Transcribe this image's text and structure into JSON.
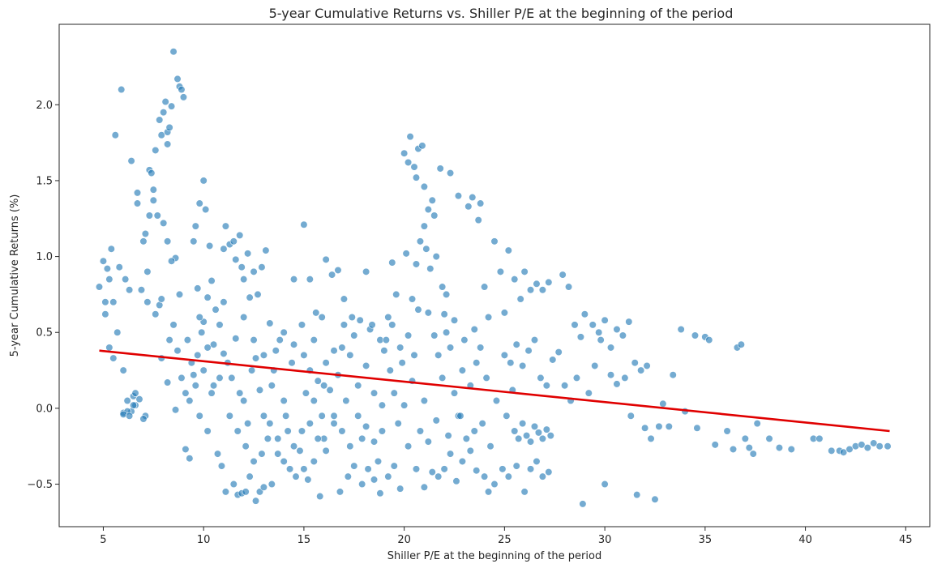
{
  "chart_data": {
    "type": "scatter",
    "title": "5-year Cumulative Returns vs. Shiller P/E at the beginning of the period",
    "xlabel": "Shiller P/E at the beginning of the period",
    "ylabel": "5-year Cumulative Returns (%)",
    "xlim": [
      2.8,
      46.2
    ],
    "ylim": [
      -0.78,
      2.53
    ],
    "x_ticks": [
      5,
      10,
      15,
      20,
      25,
      30,
      35,
      40,
      45
    ],
    "x_tick_labels": [
      "5",
      "10",
      "15",
      "20",
      "25",
      "30",
      "35",
      "40",
      "45"
    ],
    "y_ticks": [
      -0.5,
      0.0,
      0.5,
      1.0,
      1.5,
      2.0
    ],
    "y_tick_labels": [
      "−0.5",
      "0.0",
      "0.5",
      "1.0",
      "1.5",
      "2.0"
    ],
    "grid": false,
    "legend": null,
    "colors": {
      "points": "#1f77b4",
      "points_edge": "#ffffff",
      "trendline": "#e00000",
      "axes": "#262626"
    },
    "trendline": {
      "x": [
        4.8,
        44.2
      ],
      "y": [
        0.38,
        -0.15
      ]
    },
    "points": [
      [
        4.8,
        0.8
      ],
      [
        5.0,
        0.97
      ],
      [
        5.1,
        0.62
      ],
      [
        5.1,
        0.7
      ],
      [
        5.2,
        0.92
      ],
      [
        5.3,
        0.85
      ],
      [
        5.4,
        1.05
      ],
      [
        5.5,
        0.7
      ],
      [
        5.3,
        0.4
      ],
      [
        5.5,
        0.33
      ],
      [
        5.6,
        1.8
      ],
      [
        5.9,
        2.1
      ],
      [
        5.8,
        0.93
      ],
      [
        5.7,
        0.5
      ],
      [
        6.0,
        0.25
      ],
      [
        6.1,
        0.85
      ],
      [
        6.3,
        0.78
      ],
      [
        6.4,
        1.63
      ],
      [
        6.0,
        -0.03
      ],
      [
        6.2,
        0.05
      ],
      [
        6.4,
        -0.02
      ],
      [
        6.5,
        0.08
      ],
      [
        6.6,
        0.02
      ],
      [
        6.7,
        1.42
      ],
      [
        6.7,
        1.35
      ],
      [
        6.9,
        0.78
      ],
      [
        7.0,
        1.1
      ],
      [
        7.1,
        1.15
      ],
      [
        7.2,
        0.9
      ],
      [
        7.3,
        1.57
      ],
      [
        7.4,
        1.55
      ],
      [
        7.5,
        1.44
      ],
      [
        7.5,
        1.37
      ],
      [
        7.6,
        1.7
      ],
      [
        7.3,
        1.27
      ],
      [
        7.7,
        1.27
      ],
      [
        7.8,
        0.68
      ],
      [
        7.9,
        0.72
      ],
      [
        7.8,
        1.9
      ],
      [
        7.9,
        1.8
      ],
      [
        8.0,
        1.95
      ],
      [
        8.1,
        2.02
      ],
      [
        8.2,
        1.74
      ],
      [
        8.2,
        1.82
      ],
      [
        8.3,
        1.85
      ],
      [
        8.4,
        1.99
      ],
      [
        8.5,
        2.35
      ],
      [
        8.7,
        2.17
      ],
      [
        8.8,
        2.12
      ],
      [
        8.9,
        2.1
      ],
      [
        9.0,
        2.05
      ],
      [
        8.6,
        0.99
      ],
      [
        8.4,
        0.97
      ],
      [
        8.0,
        1.22
      ],
      [
        8.2,
        1.1
      ],
      [
        7.6,
        0.62
      ],
      [
        7.2,
        0.7
      ],
      [
        7.1,
        -0.05
      ],
      [
        7.0,
        -0.07
      ],
      [
        6.8,
        0.06
      ],
      [
        6.6,
        0.1
      ],
      [
        6.5,
        0.02
      ],
      [
        6.2,
        -0.02
      ],
      [
        6.0,
        -0.04
      ],
      [
        6.3,
        -0.05
      ],
      [
        7.9,
        0.33
      ],
      [
        8.2,
        0.17
      ],
      [
        8.6,
        -0.01
      ],
      [
        9.1,
        -0.27
      ],
      [
        9.3,
        -0.33
      ],
      [
        9.5,
        1.1
      ],
      [
        9.6,
        1.2
      ],
      [
        9.8,
        1.35
      ],
      [
        9.7,
        0.79
      ],
      [
        10.0,
        1.5
      ],
      [
        10.1,
        1.31
      ],
      [
        10.3,
        1.07
      ],
      [
        10.4,
        0.84
      ],
      [
        10.2,
        0.73
      ],
      [
        10.0,
        0.57
      ],
      [
        9.8,
        -0.05
      ],
      [
        10.2,
        -0.15
      ],
      [
        10.5,
        0.15
      ],
      [
        10.7,
        -0.3
      ],
      [
        10.9,
        -0.38
      ],
      [
        11.0,
        1.05
      ],
      [
        11.1,
        1.2
      ],
      [
        11.3,
        1.08
      ],
      [
        11.5,
        1.1
      ],
      [
        11.6,
        0.98
      ],
      [
        11.8,
        1.14
      ],
      [
        11.9,
        0.93
      ],
      [
        12.0,
        0.85
      ],
      [
        12.2,
        1.02
      ],
      [
        12.3,
        0.73
      ],
      [
        12.5,
        0.9
      ],
      [
        12.7,
        0.75
      ],
      [
        12.9,
        0.93
      ],
      [
        13.1,
        1.04
      ],
      [
        13.3,
        0.56
      ],
      [
        11.1,
        -0.55
      ],
      [
        11.5,
        -0.5
      ],
      [
        11.7,
        -0.57
      ],
      [
        11.9,
        -0.56
      ],
      [
        12.1,
        -0.55
      ],
      [
        12.3,
        -0.45
      ],
      [
        12.6,
        -0.61
      ],
      [
        12.8,
        -0.55
      ],
      [
        13.0,
        -0.52
      ],
      [
        13.4,
        -0.5
      ],
      [
        10.5,
        0.42
      ],
      [
        10.8,
        0.55
      ],
      [
        11.0,
        0.36
      ],
      [
        11.2,
        0.3
      ],
      [
        11.4,
        0.2
      ],
      [
        11.6,
        0.46
      ],
      [
        11.8,
        0.1
      ],
      [
        12.0,
        0.05
      ],
      [
        12.2,
        -0.1
      ],
      [
        12.4,
        0.25
      ],
      [
        12.6,
        0.33
      ],
      [
        12.8,
        0.12
      ],
      [
        13.0,
        -0.05
      ],
      [
        13.2,
        -0.2
      ],
      [
        13.4,
        0.15
      ],
      [
        13.6,
        0.38
      ],
      [
        13.8,
        0.45
      ],
      [
        14.0,
        0.05
      ],
      [
        14.2,
        -0.15
      ],
      [
        14.4,
        0.3
      ],
      [
        13.7,
        -0.3
      ],
      [
        14.0,
        -0.35
      ],
      [
        14.3,
        -0.4
      ],
      [
        14.6,
        -0.45
      ],
      [
        14.8,
        -0.28
      ],
      [
        15.0,
        -0.4
      ],
      [
        15.2,
        -0.47
      ],
      [
        15.5,
        -0.35
      ],
      [
        15.8,
        -0.58
      ],
      [
        16.0,
        -0.2
      ],
      [
        14.5,
        0.85
      ],
      [
        14.9,
        0.55
      ],
      [
        15.0,
        1.21
      ],
      [
        15.3,
        0.85
      ],
      [
        15.6,
        0.63
      ],
      [
        15.9,
        0.6
      ],
      [
        16.1,
        0.98
      ],
      [
        16.4,
        0.88
      ],
      [
        16.7,
        0.91
      ],
      [
        17.0,
        0.55
      ],
      [
        15.1,
        0.1
      ],
      [
        15.3,
        0.25
      ],
      [
        15.5,
        0.05
      ],
      [
        15.7,
        0.18
      ],
      [
        15.9,
        -0.05
      ],
      [
        16.1,
        0.3
      ],
      [
        16.3,
        0.12
      ],
      [
        16.5,
        -0.1
      ],
      [
        16.7,
        0.22
      ],
      [
        16.9,
        0.4
      ],
      [
        17.1,
        0.05
      ],
      [
        17.3,
        0.35
      ],
      [
        17.5,
        0.48
      ],
      [
        17.7,
        0.15
      ],
      [
        17.9,
        -0.2
      ],
      [
        18.1,
        0.28
      ],
      [
        18.3,
        0.52
      ],
      [
        18.5,
        0.1
      ],
      [
        18.7,
        -0.35
      ],
      [
        18.9,
        -0.15
      ],
      [
        16.8,
        -0.55
      ],
      [
        17.2,
        -0.45
      ],
      [
        17.5,
        -0.38
      ],
      [
        17.9,
        -0.5
      ],
      [
        18.2,
        -0.4
      ],
      [
        18.5,
        -0.47
      ],
      [
        18.8,
        -0.56
      ],
      [
        19.2,
        -0.45
      ],
      [
        19.5,
        -0.38
      ],
      [
        19.8,
        -0.53
      ],
      [
        17.0,
        0.72
      ],
      [
        17.4,
        0.6
      ],
      [
        17.8,
        0.58
      ],
      [
        18.1,
        0.9
      ],
      [
        18.4,
        0.55
      ],
      [
        18.8,
        0.45
      ],
      [
        19.0,
        0.38
      ],
      [
        19.2,
        0.6
      ],
      [
        19.4,
        0.96
      ],
      [
        19.6,
        0.75
      ],
      [
        19.3,
        0.25
      ],
      [
        19.5,
        0.1
      ],
      [
        19.7,
        -0.1
      ],
      [
        19.9,
        0.3
      ],
      [
        20.0,
        0.02
      ],
      [
        20.2,
        -0.25
      ],
      [
        20.4,
        0.18
      ],
      [
        20.6,
        -0.4
      ],
      [
        20.8,
        -0.15
      ],
      [
        21.0,
        0.05
      ],
      [
        20.0,
        1.68
      ],
      [
        20.2,
        1.62
      ],
      [
        20.3,
        1.79
      ],
      [
        20.5,
        1.59
      ],
      [
        20.6,
        1.52
      ],
      [
        20.7,
        1.71
      ],
      [
        20.9,
        1.73
      ],
      [
        21.0,
        1.46
      ],
      [
        21.2,
        1.31
      ],
      [
        21.4,
        1.37
      ],
      [
        21.5,
        1.27
      ],
      [
        21.8,
        1.58
      ],
      [
        22.3,
        1.55
      ],
      [
        22.7,
        1.4
      ],
      [
        23.2,
        1.33
      ],
      [
        23.4,
        1.39
      ],
      [
        23.7,
        1.24
      ],
      [
        23.8,
        1.35
      ],
      [
        20.1,
        1.02
      ],
      [
        20.6,
        0.95
      ],
      [
        20.8,
        1.1
      ],
      [
        21.0,
        1.2
      ],
      [
        21.1,
        1.05
      ],
      [
        21.3,
        0.92
      ],
      [
        21.6,
        1.0
      ],
      [
        21.9,
        0.8
      ],
      [
        22.1,
        0.75
      ],
      [
        20.4,
        0.72
      ],
      [
        20.7,
        0.65
      ],
      [
        21.2,
        0.63
      ],
      [
        21.5,
        0.48
      ],
      [
        21.7,
        0.35
      ],
      [
        21.9,
        0.2
      ],
      [
        22.1,
        0.5
      ],
      [
        22.3,
        0.4
      ],
      [
        22.5,
        0.1
      ],
      [
        22.7,
        -0.05
      ],
      [
        22.9,
        0.25
      ],
      [
        23.1,
        -0.2
      ],
      [
        23.3,
        0.15
      ],
      [
        21.0,
        -0.52
      ],
      [
        21.4,
        -0.42
      ],
      [
        21.7,
        -0.45
      ],
      [
        22.0,
        -0.4
      ],
      [
        22.3,
        -0.3
      ],
      [
        22.6,
        -0.48
      ],
      [
        22.9,
        -0.35
      ],
      [
        23.3,
        -0.28
      ],
      [
        23.6,
        -0.41
      ],
      [
        24.0,
        -0.45
      ],
      [
        23.5,
        0.52
      ],
      [
        23.8,
        0.4
      ],
      [
        24.0,
        0.8
      ],
      [
        24.2,
        0.6
      ],
      [
        24.5,
        1.1
      ],
      [
        24.8,
        0.9
      ],
      [
        25.0,
        0.63
      ],
      [
        25.2,
        1.04
      ],
      [
        25.5,
        0.85
      ],
      [
        25.8,
        0.72
      ],
      [
        24.2,
        -0.55
      ],
      [
        24.5,
        -0.5
      ],
      [
        24.9,
        -0.4
      ],
      [
        25.2,
        -0.45
      ],
      [
        25.6,
        -0.38
      ],
      [
        26.0,
        -0.55
      ],
      [
        26.3,
        -0.4
      ],
      [
        26.6,
        -0.35
      ],
      [
        26.9,
        -0.45
      ],
      [
        27.2,
        -0.42
      ],
      [
        25.5,
        -0.15
      ],
      [
        25.7,
        -0.2
      ],
      [
        25.9,
        -0.1
      ],
      [
        26.1,
        -0.18
      ],
      [
        26.3,
        -0.22
      ],
      [
        26.5,
        -0.12
      ],
      [
        26.7,
        -0.16
      ],
      [
        26.9,
        -0.2
      ],
      [
        27.1,
        -0.14
      ],
      [
        27.3,
        -0.18
      ],
      [
        25.0,
        0.35
      ],
      [
        25.3,
        0.3
      ],
      [
        25.6,
        0.42
      ],
      [
        25.9,
        0.28
      ],
      [
        26.2,
        0.38
      ],
      [
        26.5,
        0.45
      ],
      [
        26.8,
        0.2
      ],
      [
        27.1,
        0.15
      ],
      [
        27.4,
        0.32
      ],
      [
        27.7,
        0.37
      ],
      [
        26.0,
        0.9
      ],
      [
        26.3,
        0.78
      ],
      [
        26.6,
        0.82
      ],
      [
        26.9,
        0.78
      ],
      [
        27.2,
        0.83
      ],
      [
        27.9,
        0.88
      ],
      [
        28.2,
        0.8
      ],
      [
        28.5,
        0.55
      ],
      [
        28.8,
        0.47
      ],
      [
        29.0,
        0.62
      ],
      [
        28.0,
        0.15
      ],
      [
        28.3,
        0.05
      ],
      [
        28.6,
        0.2
      ],
      [
        28.9,
        -0.63
      ],
      [
        29.2,
        0.1
      ],
      [
        29.5,
        0.28
      ],
      [
        29.8,
        0.45
      ],
      [
        30.0,
        -0.5
      ],
      [
        30.3,
        0.22
      ],
      [
        30.6,
        0.16
      ],
      [
        29.4,
        0.55
      ],
      [
        29.7,
        0.5
      ],
      [
        30.0,
        0.58
      ],
      [
        30.3,
        0.4
      ],
      [
        30.6,
        0.52
      ],
      [
        30.9,
        0.48
      ],
      [
        31.2,
        0.57
      ],
      [
        31.5,
        0.3
      ],
      [
        31.8,
        0.25
      ],
      [
        32.1,
        0.28
      ],
      [
        31.0,
        0.2
      ],
      [
        31.3,
        -0.05
      ],
      [
        31.6,
        -0.57
      ],
      [
        32.0,
        -0.13
      ],
      [
        32.3,
        -0.2
      ],
      [
        32.5,
        -0.6
      ],
      [
        32.7,
        -0.12
      ],
      [
        32.9,
        0.03
      ],
      [
        33.2,
        -0.12
      ],
      [
        33.4,
        0.22
      ],
      [
        33.8,
        0.52
      ],
      [
        34.5,
        0.48
      ],
      [
        35.0,
        0.47
      ],
      [
        35.2,
        0.45
      ],
      [
        34.0,
        -0.02
      ],
      [
        34.6,
        -0.13
      ],
      [
        35.5,
        -0.24
      ],
      [
        36.1,
        -0.15
      ],
      [
        36.4,
        -0.27
      ],
      [
        36.6,
        0.4
      ],
      [
        36.8,
        0.42
      ],
      [
        37.0,
        -0.2
      ],
      [
        37.2,
        -0.26
      ],
      [
        37.4,
        -0.3
      ],
      [
        37.6,
        -0.1
      ],
      [
        38.2,
        -0.2
      ],
      [
        38.7,
        -0.26
      ],
      [
        39.3,
        -0.27
      ],
      [
        40.4,
        -0.2
      ],
      [
        40.7,
        -0.2
      ],
      [
        41.3,
        -0.28
      ],
      [
        41.7,
        -0.28
      ],
      [
        41.9,
        -0.29
      ],
      [
        42.2,
        -0.27
      ],
      [
        42.5,
        -0.25
      ],
      [
        42.8,
        -0.24
      ],
      [
        43.1,
        -0.26
      ],
      [
        43.4,
        -0.23
      ],
      [
        43.7,
        -0.25
      ],
      [
        44.1,
        -0.25
      ],
      [
        9.2,
        0.45
      ],
      [
        9.4,
        0.3
      ],
      [
        9.6,
        0.15
      ],
      [
        9.8,
        0.6
      ],
      [
        10.0,
        0.25
      ],
      [
        10.2,
        0.4
      ],
      [
        10.4,
        0.1
      ],
      [
        10.6,
        0.65
      ],
      [
        10.8,
        0.2
      ],
      [
        11.0,
        0.7
      ],
      [
        9.1,
        0.1
      ],
      [
        9.3,
        0.05
      ],
      [
        9.5,
        0.22
      ],
      [
        9.7,
        0.35
      ],
      [
        9.9,
        0.5
      ],
      [
        8.9,
        0.2
      ],
      [
        8.7,
        0.38
      ],
      [
        8.5,
        0.55
      ],
      [
        8.3,
        0.45
      ],
      [
        8.8,
        0.75
      ],
      [
        12.0,
        0.6
      ],
      [
        12.5,
        0.45
      ],
      [
        13.0,
        0.35
      ],
      [
        13.5,
        0.25
      ],
      [
        14.0,
        0.5
      ],
      [
        14.5,
        0.42
      ],
      [
        15.0,
        0.35
      ],
      [
        15.5,
        0.45
      ],
      [
        16.0,
        0.15
      ],
      [
        16.5,
        0.38
      ],
      [
        11.3,
        -0.05
      ],
      [
        11.7,
        -0.15
      ],
      [
        12.1,
        -0.25
      ],
      [
        12.5,
        -0.35
      ],
      [
        12.9,
        -0.3
      ],
      [
        13.3,
        -0.1
      ],
      [
        13.7,
        -0.2
      ],
      [
        14.1,
        -0.05
      ],
      [
        14.5,
        -0.25
      ],
      [
        14.9,
        -0.15
      ],
      [
        15.3,
        -0.1
      ],
      [
        15.7,
        -0.2
      ],
      [
        16.1,
        -0.28
      ],
      [
        16.5,
        -0.05
      ],
      [
        16.9,
        -0.15
      ],
      [
        17.3,
        -0.25
      ],
      [
        17.7,
        -0.05
      ],
      [
        18.1,
        -0.12
      ],
      [
        18.5,
        -0.22
      ],
      [
        18.9,
        0.02
      ],
      [
        19.1,
        0.45
      ],
      [
        19.4,
        0.55
      ],
      [
        19.8,
        0.4
      ],
      [
        20.2,
        0.48
      ],
      [
        20.5,
        0.35
      ],
      [
        22.0,
        0.62
      ],
      [
        22.5,
        0.58
      ],
      [
        23.0,
        0.45
      ],
      [
        23.6,
        0.3
      ],
      [
        24.1,
        0.2
      ],
      [
        24.6,
        0.05
      ],
      [
        25.1,
        -0.05
      ],
      [
        25.4,
        0.12
      ],
      [
        23.9,
        -0.1
      ],
      [
        24.3,
        -0.25
      ],
      [
        23.5,
        -0.15
      ],
      [
        22.8,
        -0.05
      ],
      [
        22.2,
        -0.18
      ],
      [
        21.6,
        -0.08
      ],
      [
        21.2,
        -0.22
      ]
    ]
  }
}
